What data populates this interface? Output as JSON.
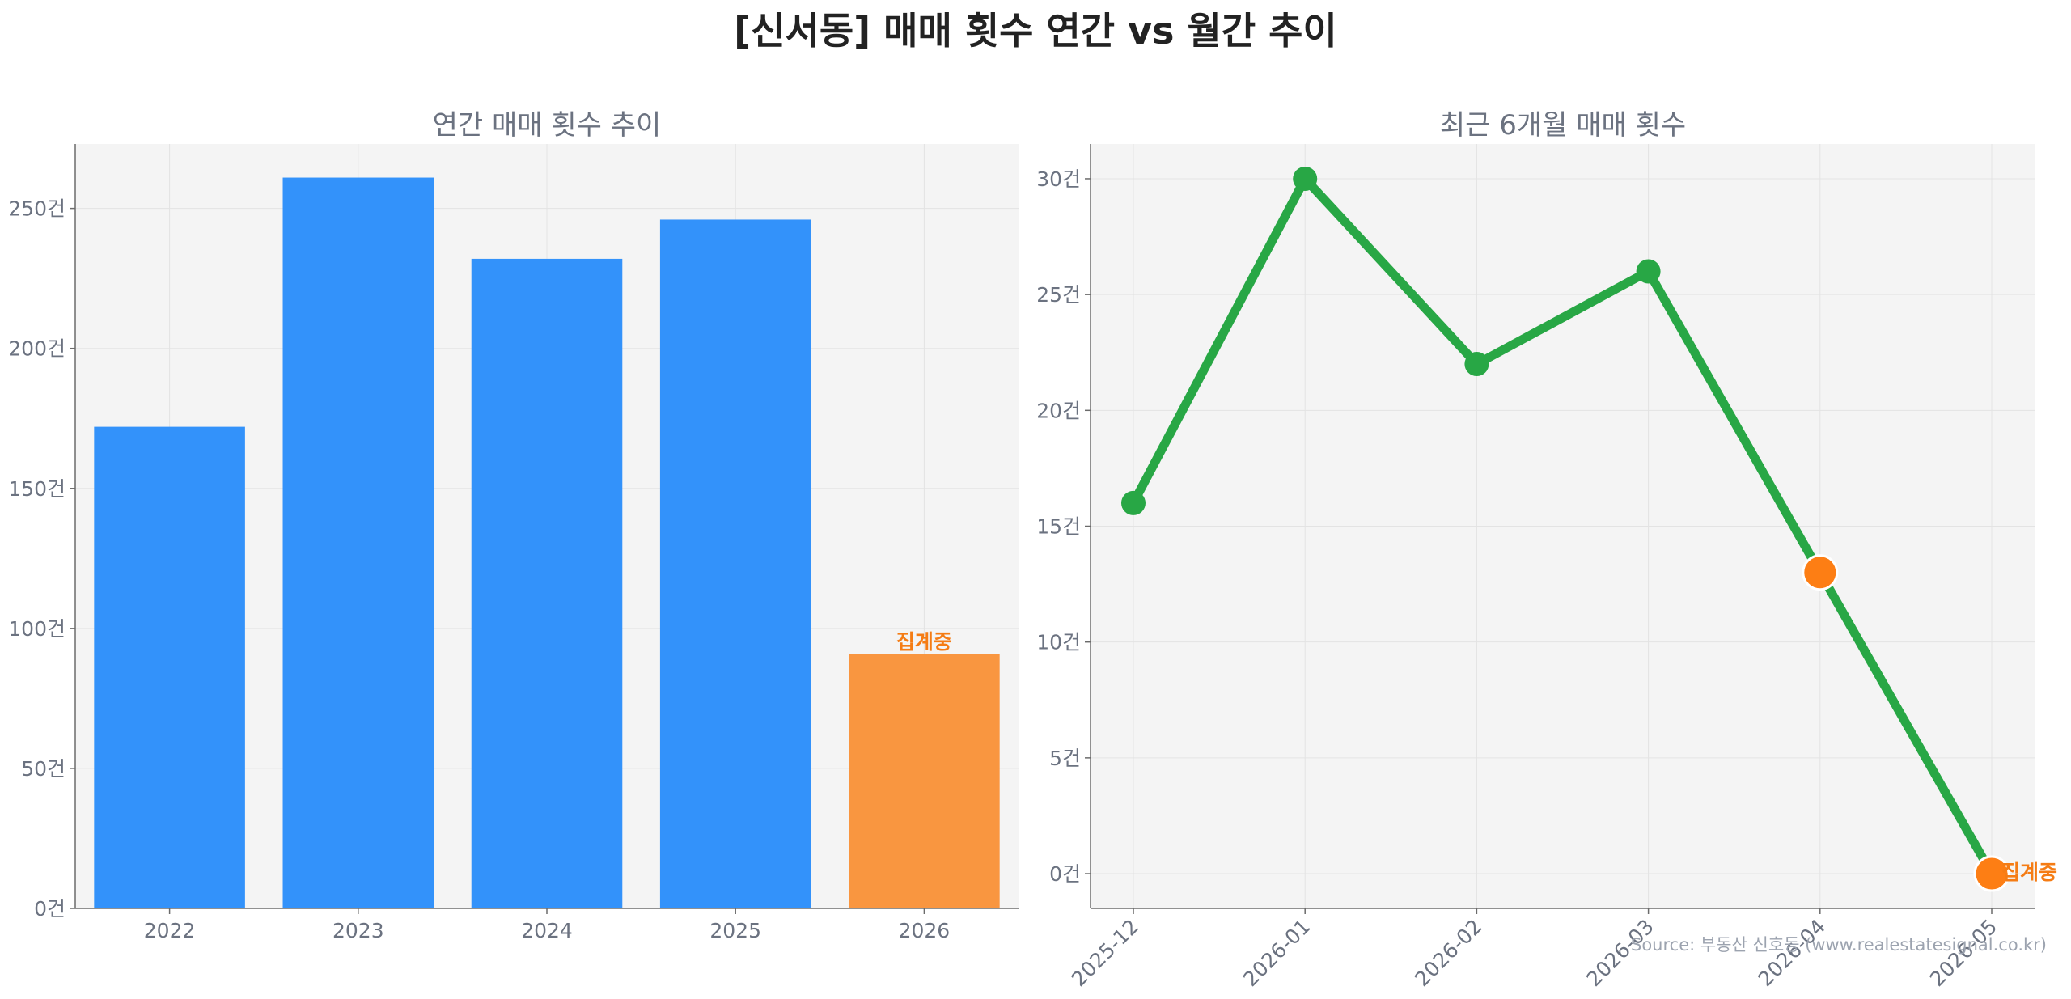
{
  "title": "[신서동] 매매 횟수 연간 vs 월간 추이",
  "source": "Source: 부동산 신호등 (www.realestatesignal.co.kr)",
  "colors": {
    "bar": "#3392fa",
    "bar_highlight": "#f99640",
    "line": "#28a745",
    "highlight_point": "#fd7e14",
    "annotation": "#f57c14",
    "plot_bg": "#f4f4f4"
  },
  "chart_data": [
    {
      "type": "bar",
      "title": "연간 매매 횟수 추이",
      "categories": [
        "2022",
        "2023",
        "2024",
        "2025",
        "2026"
      ],
      "values": [
        172,
        261,
        232,
        246,
        91
      ],
      "highlight_index": 4,
      "highlight_label": "집계중",
      "ylim": [
        0,
        273
      ],
      "yticks": [
        0,
        50,
        100,
        150,
        200,
        250
      ],
      "ytick_suffix": "건",
      "grid": true
    },
    {
      "type": "line",
      "title": "최근 6개월 매매 횟수",
      "x": [
        "2025-12",
        "2026-01",
        "2026-02",
        "2026-03",
        "2026-04",
        "2026-05"
      ],
      "values": [
        16,
        30,
        22,
        26,
        13,
        0
      ],
      "highlight_indices": [
        4,
        5
      ],
      "highlight_label": "집계중",
      "ylim": [
        -1.5,
        31.5
      ],
      "yticks": [
        0,
        5,
        10,
        15,
        20,
        25,
        30
      ],
      "ytick_suffix": "건",
      "grid": true
    }
  ]
}
